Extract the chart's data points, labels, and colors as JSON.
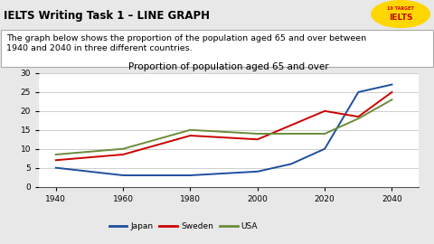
{
  "title_bar_text": "IELTS Writing Task 1 – LINE GRAPH",
  "title_bar_bg": "#FFFF00",
  "title_bar_color": "#000000",
  "description": "The graph below shows the proportion of the population aged 65 and over between\n1940 and 2040 in three different countries.",
  "chart_title": "Proportion of population aged 65 and over",
  "japan": [
    5,
    3,
    3,
    4,
    6,
    10,
    25,
    27
  ],
  "japan_x": [
    1940,
    1960,
    1980,
    2000,
    2010,
    2020,
    2030,
    2040
  ],
  "sweden": [
    7,
    8.5,
    13.5,
    12.5,
    20,
    18.5,
    25
  ],
  "sweden_x": [
    1940,
    1960,
    1980,
    2000,
    2020,
    2030,
    2040
  ],
  "usa": [
    8.5,
    10,
    15,
    14,
    14,
    18,
    23
  ],
  "usa_x": [
    1940,
    1960,
    1980,
    2000,
    2020,
    2030,
    2040
  ],
  "japan_color": "#1f4e9f",
  "sweden_color": "#cc0000",
  "usa_color": "#6b8c3b",
  "xlim": [
    1935,
    2048
  ],
  "ylim": [
    0,
    30
  ],
  "yticks": [
    0,
    5,
    10,
    15,
    20,
    25,
    30
  ],
  "xticks": [
    1940,
    1960,
    1980,
    2000,
    2020,
    2040
  ],
  "logo_bg": "#FFD700",
  "bg_color": "#e8e8e8"
}
